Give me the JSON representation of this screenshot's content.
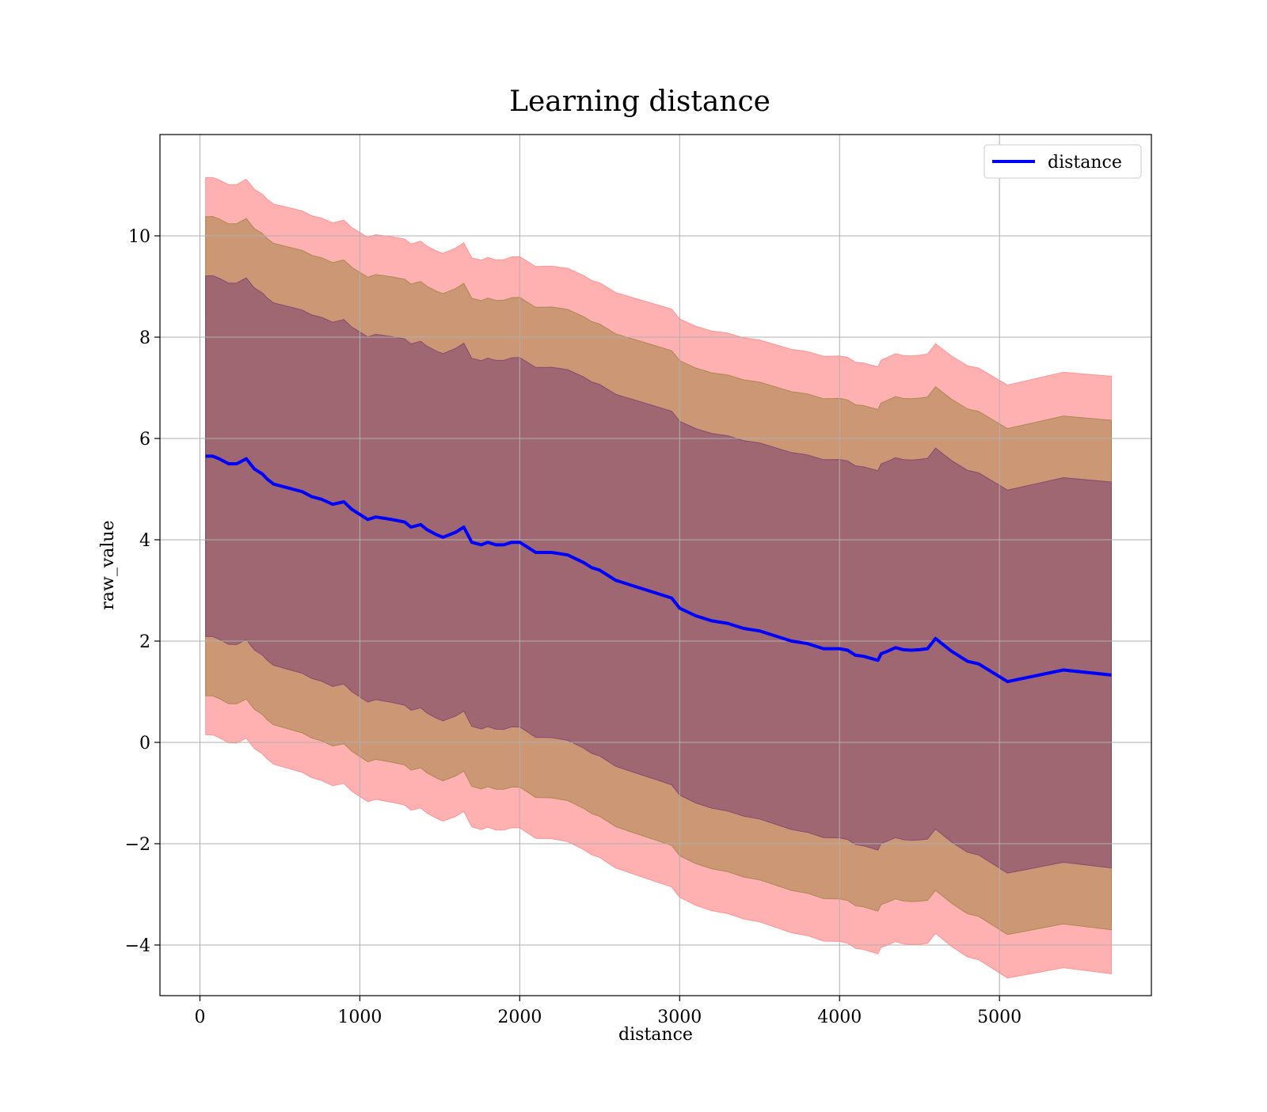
{
  "chart_data": {
    "type": "line",
    "title": "Learning distance",
    "xlabel": "distance",
    "ylabel": "raw_value",
    "xlim": [
      -250,
      5950
    ],
    "ylim": [
      -5,
      12
    ],
    "xticks": [
      0,
      1000,
      2000,
      3000,
      4000,
      5000
    ],
    "yticks": [
      -4,
      -2,
      0,
      2,
      4,
      6,
      8,
      10
    ],
    "grid": true,
    "legend_position": "top-right",
    "series": [
      {
        "name": "distance",
        "color": "#0000ff",
        "x": [
          35,
          80,
          120,
          180,
          230,
          290,
          340,
          390,
          420,
          460,
          520,
          580,
          640,
          700,
          760,
          830,
          900,
          950,
          1000,
          1050,
          1100,
          1200,
          1280,
          1320,
          1380,
          1420,
          1480,
          1520,
          1560,
          1600,
          1650,
          1700,
          1760,
          1800,
          1850,
          1900,
          1950,
          2000,
          2050,
          2100,
          2150,
          2200,
          2300,
          2400,
          2450,
          2500,
          2550,
          2600,
          2650,
          2700,
          2800,
          2900,
          2950,
          3000,
          3100,
          3200,
          3300,
          3400,
          3500,
          3600,
          3700,
          3800,
          3900,
          4000,
          4050,
          4100,
          4150,
          4240,
          4260,
          4300,
          4350,
          4400,
          4450,
          4500,
          4550,
          4600,
          4700,
          4800,
          4870,
          5050,
          5400,
          5700
        ],
        "values": [
          5.65,
          5.65,
          5.6,
          5.5,
          5.5,
          5.6,
          5.4,
          5.3,
          5.2,
          5.1,
          5.05,
          5.0,
          4.95,
          4.85,
          4.8,
          4.7,
          4.75,
          4.6,
          4.5,
          4.4,
          4.45,
          4.4,
          4.35,
          4.25,
          4.3,
          4.2,
          4.1,
          4.05,
          4.1,
          4.15,
          4.25,
          3.95,
          3.9,
          3.95,
          3.9,
          3.9,
          3.95,
          3.95,
          3.85,
          3.75,
          3.75,
          3.75,
          3.7,
          3.55,
          3.45,
          3.4,
          3.3,
          3.2,
          3.15,
          3.1,
          3.0,
          2.9,
          2.85,
          2.65,
          2.5,
          2.4,
          2.35,
          2.25,
          2.2,
          2.1,
          2.0,
          1.95,
          1.85,
          1.85,
          1.82,
          1.72,
          1.7,
          1.62,
          1.75,
          1.8,
          1.87,
          1.83,
          1.82,
          1.83,
          1.85,
          2.05,
          1.8,
          1.6,
          1.55,
          1.2,
          1.43,
          1.33
        ]
      }
    ],
    "bands": [
      {
        "color": "#ff6f6f",
        "opacity": 0.55,
        "half_width": 5.5,
        "drift": 0.4
      },
      {
        "color": "#8b7a2d",
        "opacity": 0.45,
        "half_width": 4.73,
        "drift": 0.3
      },
      {
        "color": "#6b2c6e",
        "opacity": 0.45,
        "half_width": 3.56,
        "drift": 0.25
      }
    ]
  }
}
